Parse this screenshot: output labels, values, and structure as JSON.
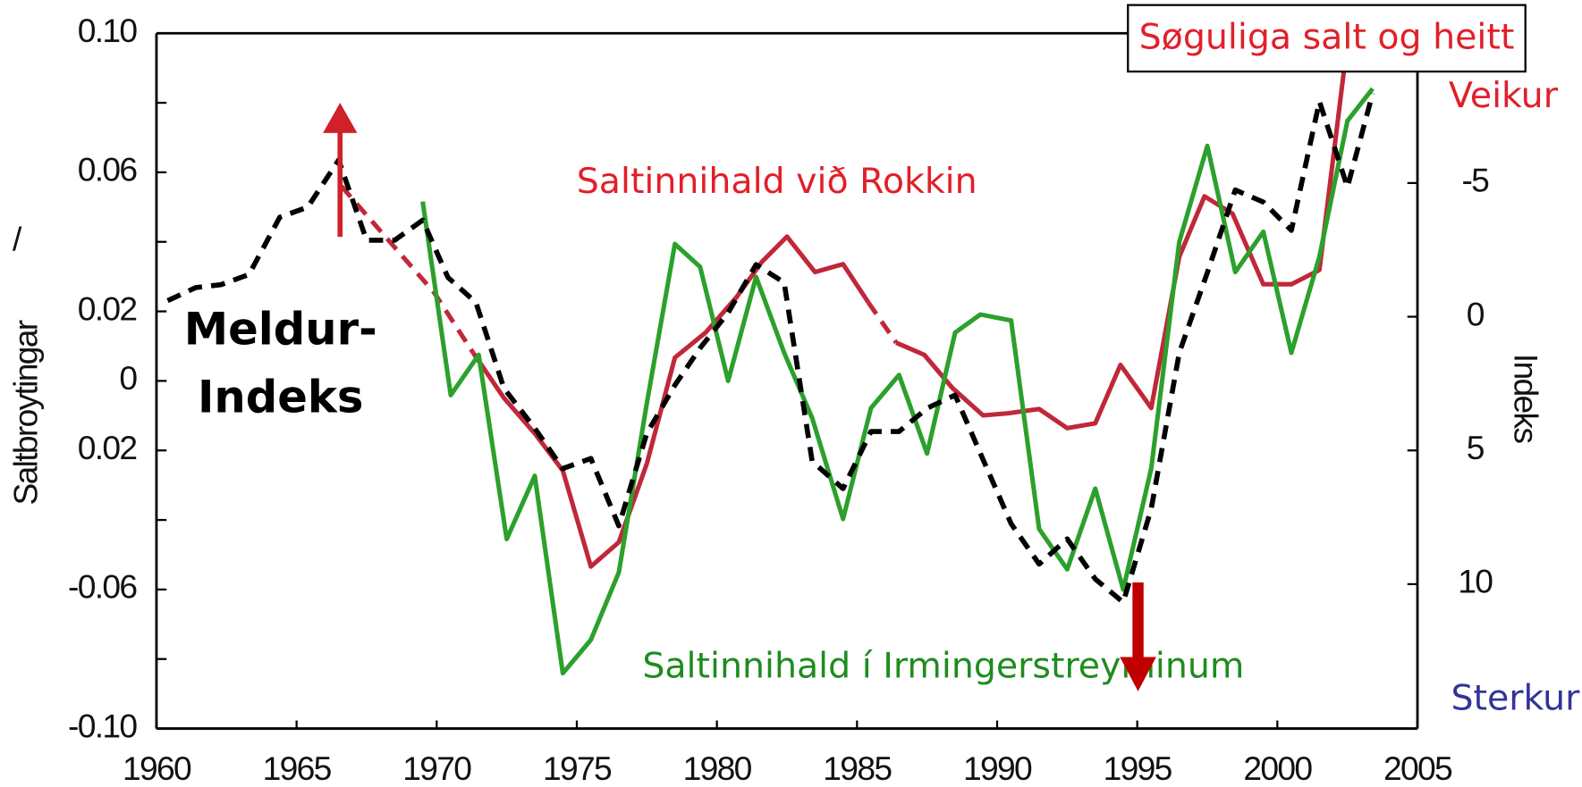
{
  "chart_data": {
    "type": "line",
    "ylabel": "Saltbroytingar",
    "y2label": "Indeks",
    "xlim": [
      1960,
      2005
    ],
    "xticks": [
      1960,
      1965,
      1970,
      1975,
      1980,
      1985,
      1990,
      1995,
      2000,
      2005
    ],
    "ylim": [
      -0.1,
      0.1
    ],
    "yticks": [
      {
        "value": 0.1,
        "label": "0.10"
      },
      0.06,
      {
        "value": 0.04,
        "label": "/"
      },
      0.02,
      0,
      {
        "value": -0.02,
        "label": "0.02"
      },
      -0.06,
      {
        "value": -0.1,
        "label": "-0.10"
      }
    ],
    "yminorticks": [
      0.08,
      -0.04,
      -0.08
    ],
    "y2lim": [
      15.4,
      -10.6
    ],
    "y2ticks": [
      -5,
      0,
      5,
      10
    ],
    "annotations": [
      {
        "text": "Saltinnihald við Rokkin",
        "color": "#e0202a"
      },
      {
        "text": "Saltinnihald í Irmingerstreyminum",
        "color": "#1e8c1e"
      },
      {
        "text": "Meldur-",
        "color": "#000000"
      },
      {
        "text": "Indeks",
        "color": "#000000"
      },
      {
        "text": "Søguliga salt og heitt",
        "color": "#e0202a"
      },
      {
        "text": "Veikur",
        "color": "#e0202a"
      },
      {
        "text": "Sterkur",
        "color": "#333399"
      }
    ],
    "series": [
      {
        "color": "#c0283a",
        "dashed": true,
        "x": [
          1966.6,
          1969.9,
          1971.3
        ],
        "values": [
          0.056,
          0.0255,
          0.0081
        ]
      },
      {
        "color": "#c0283a",
        "dashed": false,
        "x": [
          1971.3,
          1972.4,
          1973.5,
          1974.5,
          1975.5,
          1976.5,
          1977.5,
          1978.5,
          1979.6,
          1980.7,
          1981.6,
          1982.5,
          1983.5,
          1984.5,
          1985.4
        ],
        "values": [
          0.0081,
          -0.0049,
          -0.0151,
          -0.0258,
          -0.0534,
          -0.0464,
          -0.0238,
          0.0067,
          0.0139,
          0.0241,
          0.0342,
          0.0415,
          0.0313,
          0.0336,
          0.0226
        ]
      },
      {
        "color": "#c0283a",
        "dashed": true,
        "x": [
          1985.4,
          1986.4
        ],
        "values": [
          0.0226,
          0.011
        ]
      },
      {
        "color": "#c0283a",
        "dashed": false,
        "x": [
          1986.4,
          1987.4,
          1988.4,
          1989.5,
          1990.4,
          1991.5,
          1992.5,
          1993.5,
          1994.4,
          1995.5,
          1996.5,
          1997.4,
          1998.4,
          1999.5,
          2000.5,
          2001.5,
          2002.4
        ],
        "values": [
          0.011,
          0.0075,
          -0.002,
          -0.0099,
          -0.0093,
          -0.0081,
          -0.0136,
          -0.0122,
          0.0046,
          -0.0078,
          0.0357,
          0.0531,
          0.0481,
          0.0278,
          0.0278,
          0.0319,
          0.0908
        ]
      },
      {
        "color": "#2ca02c",
        "dashed": false,
        "x": [
          1969.5,
          1970.5,
          1971.5,
          1972.5,
          1973.5,
          1974.5,
          1975.5,
          1976.5,
          1977.5,
          1978.5,
          1979.4,
          1980.4,
          1981.4,
          1982.4,
          1983.4,
          1984.5,
          1985.5,
          1986.5,
          1987.5,
          1988.5,
          1989.4,
          1990.5,
          1991.5,
          1992.5,
          1993.5,
          1994.5,
          1995.5,
          1996.5,
          1997.5,
          1998.5,
          1999.5,
          2000.5,
          2001.5,
          2002.5,
          2003.4
        ],
        "values": [
          0.0516,
          -0.0041,
          0.0075,
          -0.0455,
          -0.0273,
          -0.0841,
          -0.0745,
          -0.0551,
          -0.0064,
          0.0394,
          0.0328,
          0,
          0.0299,
          0.0081,
          -0.0107,
          -0.0397,
          -0.0078,
          0.0017,
          -0.0209,
          0.0139,
          0.0191,
          0.0174,
          -0.0426,
          -0.0542,
          -0.031,
          -0.06,
          -0.0252,
          0.04,
          0.0676,
          0.0313,
          0.0429,
          0.0081,
          0.0357,
          0.0748,
          0.0841
        ]
      },
      {
        "color": "#000000",
        "dashed": true,
        "axis": "y2",
        "x": [
          1960.4,
          1961.4,
          1962.3,
          1963.3,
          1964.4,
          1965.4,
          1966.5,
          1967.5,
          1968.5,
          1969.5,
          1970.4,
          1971.4,
          1972.4,
          1973.5,
          1974.5,
          1975.5,
          1976.5,
          1977.5,
          1978.5,
          1979.4,
          1980.4,
          1981.4,
          1982.4,
          1983.4,
          1984.5,
          1985.5,
          1986.5,
          1987.5,
          1988.5,
          1989.4,
          1990.5,
          1991.5,
          1992.5,
          1993.5,
          1994.5,
          1995.5,
          1996.5,
          1997.5,
          1998.5,
          1999.5,
          2000.5,
          2001.5,
          2002.5,
          2003.4
        ],
        "values": [
          -0.6,
          -1.09,
          -1.2,
          -1.58,
          -3.72,
          -4.1,
          -5.86,
          -2.86,
          -2.86,
          -3.61,
          -1.47,
          -0.53,
          2.67,
          4.17,
          5.68,
          5.3,
          7.82,
          4.36,
          2.56,
          1.17,
          -0.15,
          -1.95,
          -1.28,
          5.41,
          6.43,
          4.29,
          4.29,
          3.42,
          2.93,
          5.11,
          7.74,
          9.25,
          8.31,
          9.81,
          10.68,
          7.18,
          1.35,
          -1.65,
          -4.74,
          -4.29,
          -3.23,
          -8.05,
          -4.85,
          -8.35
        ]
      }
    ]
  }
}
